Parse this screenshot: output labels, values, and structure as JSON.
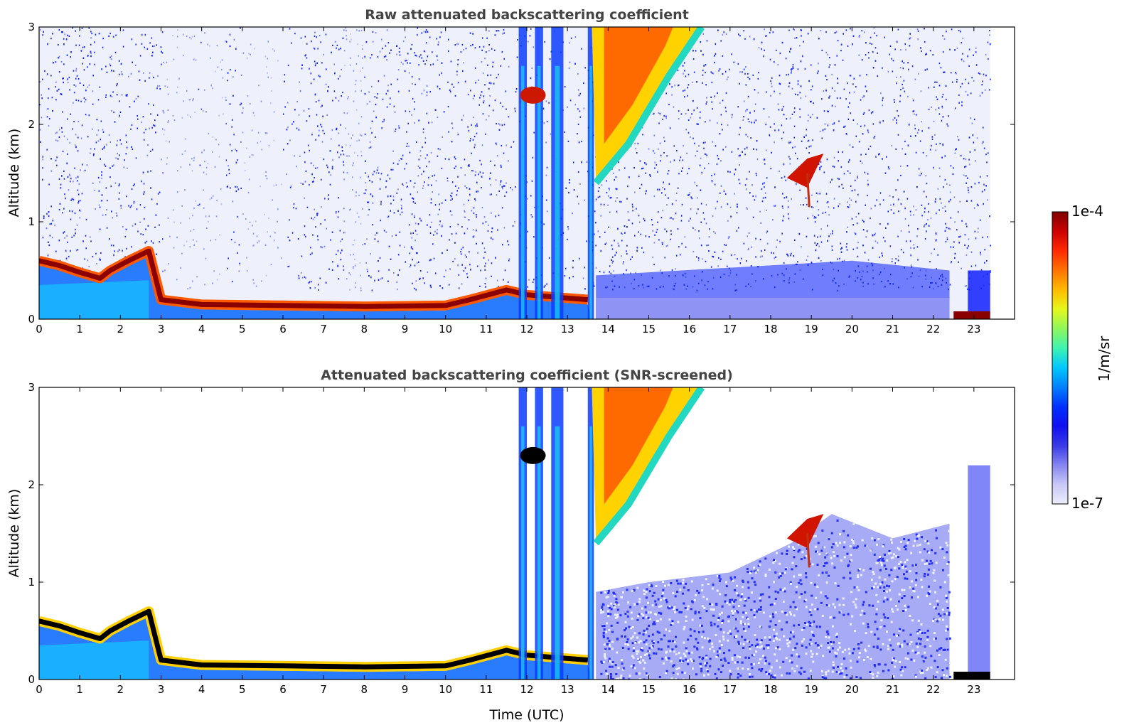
{
  "chart_data": [
    {
      "type": "heatmap",
      "title": "Raw attenuated backscattering coefficient",
      "xlabel": "",
      "ylabel": "Altitude (km)",
      "xlim": [
        0,
        24
      ],
      "ylim": [
        0,
        3
      ],
      "x_ticks": [
        0,
        1,
        2,
        3,
        4,
        5,
        6,
        7,
        8,
        9,
        10,
        11,
        12,
        13,
        14,
        15,
        16,
        17,
        18,
        19,
        20,
        21,
        22,
        23
      ],
      "y_ticks": [
        0,
        1,
        2,
        3
      ],
      "data_end_hour": 23.4,
      "color_scale": "log",
      "features": {
        "boundary_layer_top_km": [
          [
            0,
            0.6
          ],
          [
            0.5,
            0.55
          ],
          [
            1.0,
            0.48
          ],
          [
            1.5,
            0.42
          ],
          [
            1.75,
            0.5
          ],
          [
            2.2,
            0.6
          ],
          [
            2.7,
            0.7
          ],
          [
            3.0,
            0.2
          ],
          [
            4.0,
            0.15
          ],
          [
            6.0,
            0.14
          ],
          [
            8.0,
            0.13
          ],
          [
            10.0,
            0.14
          ],
          [
            10.6,
            0.2
          ],
          [
            11.5,
            0.3
          ],
          [
            12.0,
            0.25
          ],
          [
            13.5,
            0.2
          ]
        ],
        "cloud_columns_utc": [
          [
            11.8,
            12.0
          ],
          [
            12.2,
            12.4
          ],
          [
            12.6,
            12.9
          ],
          [
            13.5,
            13.65
          ]
        ],
        "tilted_cloud_base_km": [
          [
            13.7,
            1.4
          ],
          [
            14.5,
            1.8
          ],
          [
            15.5,
            2.5
          ],
          [
            16.3,
            3.0
          ]
        ],
        "elevated_layer": {
          "x": [
            18.0,
            19.5
          ],
          "y_km": [
            1.3,
            1.7
          ]
        },
        "late_low_cloud": {
          "x": [
            22.5,
            23.4
          ],
          "y_km": 0.05
        }
      }
    },
    {
      "type": "heatmap",
      "title": "Attenuated backscattering coefficient (SNR-screened)",
      "xlabel": "Time (UTC)",
      "ylabel": "Altitude (km)",
      "xlim": [
        0,
        24
      ],
      "ylim": [
        0,
        3
      ],
      "x_ticks": [
        0,
        1,
        2,
        3,
        4,
        5,
        6,
        7,
        8,
        9,
        10,
        11,
        12,
        13,
        14,
        15,
        16,
        17,
        18,
        19,
        20,
        21,
        22,
        23
      ],
      "y_ticks": [
        0,
        1,
        2,
        3
      ],
      "data_end_hour": 23.4,
      "color_scale": "log",
      "features": {
        "aerosol_layer_top_km": [
          [
            13.7,
            0.9
          ],
          [
            15,
            1.0
          ],
          [
            17,
            1.1
          ],
          [
            18.5,
            1.4
          ],
          [
            19.5,
            1.7
          ],
          [
            21,
            1.45
          ],
          [
            22.4,
            1.6
          ]
        ]
      }
    }
  ],
  "colorbar": {
    "label": "1/m/sr",
    "max_label": "1e-4",
    "min_label": "1e-7",
    "colors": [
      "#7f0000",
      "#cc0000",
      "#ff2a00",
      "#ff7300",
      "#ffbb00",
      "#e5f71c",
      "#8ef75d",
      "#3ef3b3",
      "#00c8ff",
      "#0080ff",
      "#0030ff",
      "#1010f0",
      "#3a3ae8",
      "#8585f0",
      "#c8c8f8",
      "#ececfa"
    ]
  }
}
